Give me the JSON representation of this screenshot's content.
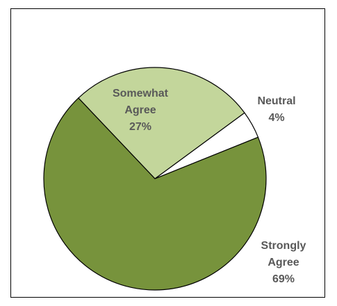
{
  "chart_data": {
    "type": "pie",
    "title": "",
    "slices": [
      {
        "label_lines": [
          "Strongly",
          "Agree"
        ],
        "percent_label": "69%",
        "value": 69,
        "color": "#77933c"
      },
      {
        "label_lines": [
          "Somewhat",
          "Agree"
        ],
        "percent_label": "27%",
        "value": 27,
        "color": "#c3d69b"
      },
      {
        "label_lines": [
          "Neutral"
        ],
        "percent_label": "4%",
        "value": 4,
        "color": "#ffffff"
      }
    ],
    "legend": "none",
    "border_color": "#000000"
  }
}
